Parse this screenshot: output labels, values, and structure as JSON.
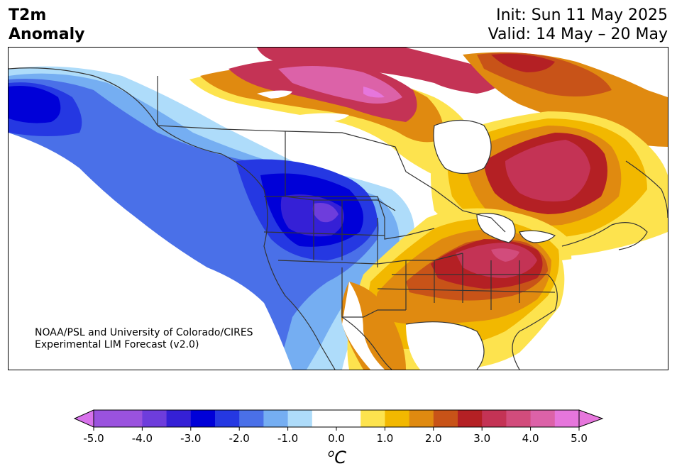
{
  "header": {
    "variable": "T2m",
    "subtitle": "Anomaly",
    "init": "Init: Sun 11 May 2025",
    "valid": "Valid: 14 May – 20 May"
  },
  "credit": {
    "line1": "NOAA/PSL and University of Colorado/CIRES",
    "line2": "Experimental LIM Forecast (v2.0)"
  },
  "colorbar": {
    "unit_base": "C",
    "unit_sup": "o",
    "ticks": [
      "-5.0",
      "-4.0",
      "-3.0",
      "-2.0",
      "-1.0",
      "0.0",
      "1.0",
      "2.0",
      "3.0",
      "4.0",
      "5.0"
    ],
    "bins": [
      {
        "from": -5.0,
        "to": -4.5,
        "color": "#9a52de"
      },
      {
        "from": -4.5,
        "to": -4.0,
        "color": "#9a52de"
      },
      {
        "from": -4.0,
        "to": -3.5,
        "color": "#6e3ddc"
      },
      {
        "from": -3.5,
        "to": -3.0,
        "color": "#3520d6"
      },
      {
        "from": -3.0,
        "to": -2.5,
        "color": "#0000d8"
      },
      {
        "from": -2.5,
        "to": -2.0,
        "color": "#2538e2"
      },
      {
        "from": -2.0,
        "to": -1.5,
        "color": "#4a70e8"
      },
      {
        "from": -1.5,
        "to": -1.0,
        "color": "#75aef2"
      },
      {
        "from": -1.0,
        "to": -0.5,
        "color": "#aedcfa"
      },
      {
        "from": -0.5,
        "to": 0.0,
        "color": "#ffffff"
      },
      {
        "from": 0.0,
        "to": 0.5,
        "color": "#ffffff"
      },
      {
        "from": 0.5,
        "to": 1.0,
        "color": "#fde34e"
      },
      {
        "from": 1.0,
        "to": 1.5,
        "color": "#f2b800"
      },
      {
        "from": 1.5,
        "to": 2.0,
        "color": "#e08a10"
      },
      {
        "from": 2.0,
        "to": 2.5,
        "color": "#c85318"
      },
      {
        "from": 2.5,
        "to": 3.0,
        "color": "#b42024"
      },
      {
        "from": 3.0,
        "to": 3.5,
        "color": "#c43355"
      },
      {
        "from": 3.5,
        "to": 4.0,
        "color": "#d24c7c"
      },
      {
        "from": 4.0,
        "to": 4.5,
        "color": "#dc62a8"
      },
      {
        "from": 4.5,
        "to": 5.0,
        "color": "#e676dc"
      }
    ],
    "under_color": "#d872ec",
    "over_color": "#e676dc"
  }
}
